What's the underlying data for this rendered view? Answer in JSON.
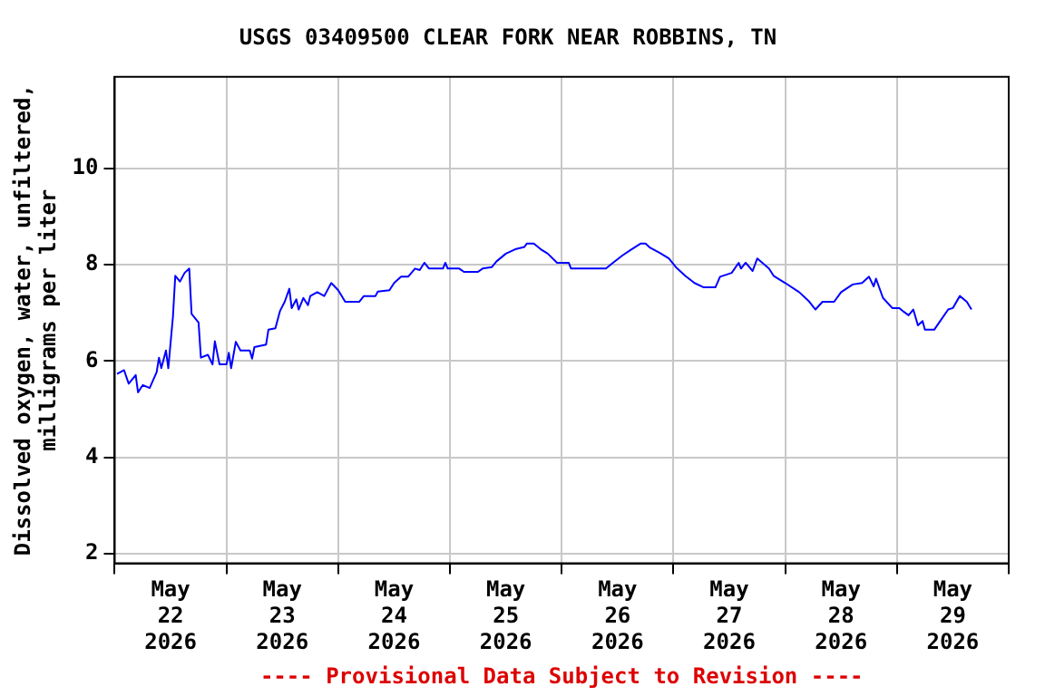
{
  "chart_data": {
    "type": "line",
    "title": "USGS 03409500 CLEAR FORK NEAR ROBBINS, TN",
    "ylabel": "Dissolved oxygen, water, unfiltered,\nmilligrams per liter",
    "annotations": [
      "---- Provisional Data Subject to Revision ----"
    ],
    "x": [
      "2026-05-22T00:30",
      "2026-05-22T02:00",
      "2026-05-22T03:00",
      "2026-05-22T04:30",
      "2026-05-22T05:00",
      "2026-05-22T06:00",
      "2026-05-22T07:30",
      "2026-05-22T09:00",
      "2026-05-22T09:30",
      "2026-05-22T10:00",
      "2026-05-22T11:00",
      "2026-05-22T11:30",
      "2026-05-22T12:30",
      "2026-05-22T13:00",
      "2026-05-22T14:00",
      "2026-05-22T15:00",
      "2026-05-22T16:00",
      "2026-05-22T16:30",
      "2026-05-22T18:00",
      "2026-05-22T18:30",
      "2026-05-22T20:00",
      "2026-05-22T21:00",
      "2026-05-22T21:30",
      "2026-05-22T22:30",
      "2026-05-23T00:00",
      "2026-05-23T00:30",
      "2026-05-23T01:00",
      "2026-05-23T02:00",
      "2026-05-23T03:00",
      "2026-05-23T05:00",
      "2026-05-23T05:30",
      "2026-05-23T06:00",
      "2026-05-23T08:30",
      "2026-05-23T09:00",
      "2026-05-23T10:30",
      "2026-05-23T11:30",
      "2026-05-23T12:30",
      "2026-05-23T13:30",
      "2026-05-23T14:00",
      "2026-05-23T15:00",
      "2026-05-23T15:30",
      "2026-05-23T16:30",
      "2026-05-23T17:30",
      "2026-05-23T18:00",
      "2026-05-23T19:30",
      "2026-05-23T21:00",
      "2026-05-23T22:30",
      "2026-05-24T00:00",
      "2026-05-24T01:30",
      "2026-05-24T04:30",
      "2026-05-24T05:30",
      "2026-05-24T08:00",
      "2026-05-24T08:30",
      "2026-05-24T11:00",
      "2026-05-24T12:00",
      "2026-05-24T13:30",
      "2026-05-24T15:00",
      "2026-05-24T16:30",
      "2026-05-24T17:30",
      "2026-05-24T18:30",
      "2026-05-24T19:30",
      "2026-05-24T22:30",
      "2026-05-24T23:00",
      "2026-05-24T23:30",
      "2026-05-25T02:00",
      "2026-05-25T03:00",
      "2026-05-25T06:00",
      "2026-05-25T07:00",
      "2026-05-25T09:00",
      "2026-05-25T10:00",
      "2026-05-25T12:00",
      "2026-05-25T14:00",
      "2026-05-25T16:00",
      "2026-05-25T16:30",
      "2026-05-25T18:00",
      "2026-05-25T19:30",
      "2026-05-25T21:00",
      "2026-05-25T23:00",
      "2026-05-26T01:30",
      "2026-05-26T02:00",
      "2026-05-26T09:30",
      "2026-05-26T11:00",
      "2026-05-26T13:00",
      "2026-05-26T15:00",
      "2026-05-26T17:00",
      "2026-05-26T18:00",
      "2026-05-26T19:00",
      "2026-05-26T21:00",
      "2026-05-26T23:00",
      "2026-05-27T00:30",
      "2026-05-27T02:30",
      "2026-05-27T04:30",
      "2026-05-27T06:30",
      "2026-05-27T09:00",
      "2026-05-27T10:00",
      "2026-05-27T12:30",
      "2026-05-27T14:00",
      "2026-05-27T14:30",
      "2026-05-27T15:30",
      "2026-05-27T17:00",
      "2026-05-27T18:00",
      "2026-05-27T20:30",
      "2026-05-27T21:30",
      "2026-05-28T00:00",
      "2026-05-28T03:00",
      "2026-05-28T05:00",
      "2026-05-28T06:30",
      "2026-05-28T08:00",
      "2026-05-28T10:30",
      "2026-05-28T12:00",
      "2026-05-28T14:30",
      "2026-05-28T16:30",
      "2026-05-28T18:00",
      "2026-05-28T19:00",
      "2026-05-28T19:30",
      "2026-05-28T21:00",
      "2026-05-28T23:00",
      "2026-05-29T00:30",
      "2026-05-29T01:30",
      "2026-05-29T02:30",
      "2026-05-29T03:30",
      "2026-05-29T04:30",
      "2026-05-29T05:30",
      "2026-05-29T06:00",
      "2026-05-29T08:00",
      "2026-05-29T09:30",
      "2026-05-29T11:00",
      "2026-05-29T12:00",
      "2026-05-29T13:30",
      "2026-05-29T15:00",
      "2026-05-29T16:00"
    ],
    "series": [
      {
        "color": "#0000ff",
        "values": [
          5.73,
          5.81,
          5.53,
          5.71,
          5.35,
          5.5,
          5.44,
          5.77,
          6.07,
          5.85,
          6.22,
          5.85,
          6.92,
          7.77,
          7.65,
          7.83,
          7.92,
          6.98,
          6.8,
          6.07,
          6.13,
          5.93,
          6.41,
          5.93,
          5.93,
          6.17,
          5.85,
          6.4,
          6.22,
          6.22,
          6.05,
          6.29,
          6.34,
          6.65,
          6.68,
          7.04,
          7.23,
          7.5,
          7.1,
          7.28,
          7.07,
          7.31,
          7.16,
          7.35,
          7.43,
          7.35,
          7.62,
          7.47,
          7.23,
          7.23,
          7.35,
          7.35,
          7.44,
          7.47,
          7.62,
          7.75,
          7.75,
          7.92,
          7.89,
          8.04,
          7.92,
          7.92,
          8.04,
          7.92,
          7.92,
          7.85,
          7.85,
          7.92,
          7.95,
          8.07,
          8.23,
          8.32,
          8.37,
          8.44,
          8.44,
          8.32,
          8.23,
          8.04,
          8.04,
          7.92,
          7.92,
          8.04,
          8.19,
          8.32,
          8.44,
          8.44,
          8.35,
          8.25,
          8.13,
          7.95,
          7.77,
          7.62,
          7.53,
          7.53,
          7.75,
          7.83,
          8.04,
          7.92,
          8.04,
          7.87,
          8.13,
          7.92,
          7.77,
          7.62,
          7.43,
          7.25,
          7.07,
          7.23,
          7.23,
          7.43,
          7.59,
          7.62,
          7.75,
          7.55,
          7.71,
          7.31,
          7.1,
          7.1,
          7.02,
          6.95,
          7.07,
          6.74,
          6.83,
          6.65,
          6.65,
          6.86,
          7.07,
          7.1,
          7.35,
          7.23,
          7.07
        ]
      }
    ],
    "xlim": [
      "2026-05-22T00:00",
      "2026-05-30T00:00"
    ],
    "xticks": [
      {
        "value": "2026-05-22T00:00",
        "label": null
      },
      {
        "value": "2026-05-22T12:00",
        "label": "May\n22\n2026"
      },
      {
        "value": "2026-05-23T00:00",
        "label": null
      },
      {
        "value": "2026-05-23T12:00",
        "label": "May\n23\n2026"
      },
      {
        "value": "2026-05-24T00:00",
        "label": null
      },
      {
        "value": "2026-05-24T12:00",
        "label": "May\n24\n2026"
      },
      {
        "value": "2026-05-25T00:00",
        "label": null
      },
      {
        "value": "2026-05-25T12:00",
        "label": "May\n25\n2026"
      },
      {
        "value": "2026-05-26T00:00",
        "label": null
      },
      {
        "value": "2026-05-26T12:00",
        "label": "May\n26\n2026"
      },
      {
        "value": "2026-05-27T00:00",
        "label": null
      },
      {
        "value": "2026-05-27T12:00",
        "label": "May\n27\n2026"
      },
      {
        "value": "2026-05-28T00:00",
        "label": null
      },
      {
        "value": "2026-05-28T12:00",
        "label": "May\n28\n2026"
      },
      {
        "value": "2026-05-29T00:00",
        "label": null
      },
      {
        "value": "2026-05-29T12:00",
        "label": "May\n29\n2026"
      },
      {
        "value": "2026-05-30T00:00",
        "label": null
      }
    ],
    "ylim": [
      1.8,
      11.9
    ],
    "yticks": [
      2,
      4,
      6,
      8,
      10
    ],
    "grid": true,
    "legend": false
  }
}
